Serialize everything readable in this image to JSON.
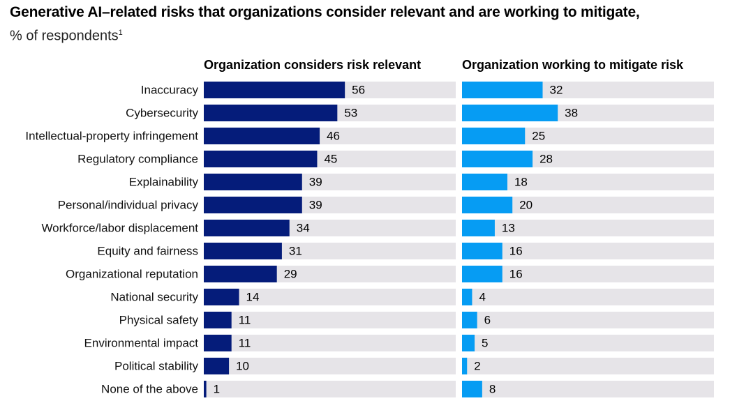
{
  "chart_data": {
    "type": "bar",
    "title": "Generative AI–related risks that organizations consider relevant and are working to mitigate,",
    "subtitle": "% of respondents",
    "footnote_marker": "1",
    "categories": [
      "Inaccuracy",
      "Cybersecurity",
      "Intellectual-property infringement",
      "Regulatory compliance",
      "Explainability",
      "Personal/individual privacy",
      "Workforce/labor displacement",
      "Equity and fairness",
      "Organizational reputation",
      "National security",
      "Physical safety",
      "Environmental impact",
      "Political stability",
      "None of the above"
    ],
    "series": [
      {
        "name": "Organization considers risk relevant",
        "color": "#051c7a",
        "values": [
          56,
          53,
          46,
          45,
          39,
          39,
          34,
          31,
          29,
          14,
          11,
          11,
          10,
          1
        ]
      },
      {
        "name": "Organization working to mitigate risk",
        "color": "#069cf3",
        "values": [
          32,
          38,
          25,
          28,
          18,
          20,
          13,
          16,
          16,
          4,
          6,
          5,
          2,
          8
        ]
      }
    ],
    "track_color": "#e6e4e8",
    "xlim": [
      0,
      100
    ],
    "xlabel": "",
    "ylabel": ""
  }
}
